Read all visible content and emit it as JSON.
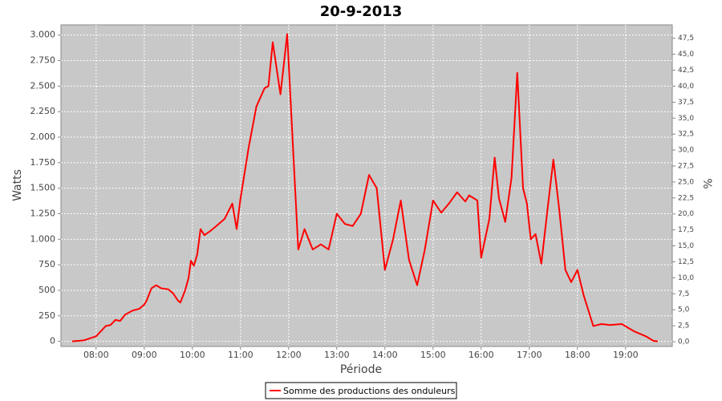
{
  "chart_data": {
    "type": "line",
    "title": "20-9-2013",
    "x_label": "Période",
    "y_label": "Watts",
    "y2_label": "%",
    "grid": true,
    "legend": "bottom",
    "x": [
      7.5,
      7.75,
      8.0,
      8.1,
      8.2,
      8.3,
      8.4,
      8.5,
      8.6,
      8.75,
      8.9,
      9.0,
      9.05,
      9.15,
      9.25,
      9.35,
      9.5,
      9.6,
      9.7,
      9.75,
      9.85,
      9.92,
      9.97,
      10.03,
      10.1,
      10.17,
      10.25,
      10.37,
      10.5,
      10.67,
      10.83,
      10.92,
      11.0,
      11.17,
      11.33,
      11.5,
      11.58,
      11.67,
      11.83,
      11.97,
      12.08,
      12.2,
      12.33,
      12.5,
      12.67,
      12.83,
      13.0,
      13.17,
      13.33,
      13.5,
      13.67,
      13.83,
      14.0,
      14.17,
      14.33,
      14.5,
      14.67,
      14.83,
      15.0,
      15.17,
      15.33,
      15.5,
      15.67,
      15.75,
      15.92,
      16.0,
      16.17,
      16.28,
      16.37,
      16.5,
      16.63,
      16.75,
      16.87,
      16.95,
      17.03,
      17.13,
      17.25,
      17.38,
      17.5,
      17.62,
      17.75,
      17.87,
      18.0,
      18.13,
      18.33,
      18.5,
      18.67,
      18.92,
      19.17,
      19.42,
      19.58,
      19.67
    ],
    "series": [
      {
        "name": "Somme des productions des onduleurs",
        "color": "#ff0000",
        "values": [
          0,
          10,
          50,
          100,
          150,
          160,
          210,
          200,
          260,
          300,
          320,
          360,
          400,
          520,
          550,
          520,
          510,
          470,
          400,
          380,
          500,
          620,
          790,
          740,
          850,
          1100,
          1040,
          1080,
          1130,
          1200,
          1350,
          1100,
          1400,
          1900,
          2300,
          2480,
          2500,
          2930,
          2420,
          3010,
          2000,
          900,
          1100,
          900,
          950,
          900,
          1250,
          1150,
          1130,
          1250,
          1630,
          1500,
          700,
          1000,
          1380,
          800,
          550,
          900,
          1380,
          1260,
          1350,
          1460,
          1370,
          1430,
          1380,
          820,
          1200,
          1800,
          1400,
          1170,
          1600,
          2630,
          1500,
          1350,
          1000,
          1050,
          760,
          1300,
          1780,
          1300,
          700,
          580,
          700,
          450,
          150,
          170,
          160,
          170,
          100,
          50,
          5,
          0
        ]
      }
    ],
    "xlim": [
      7.27,
      19.97
    ],
    "xticks": [
      {
        "value": 8,
        "label": "08:00"
      },
      {
        "value": 9,
        "label": "09:00"
      },
      {
        "value": 10,
        "label": "10:00"
      },
      {
        "value": 11,
        "label": "11:00"
      },
      {
        "value": 12,
        "label": "12:00"
      },
      {
        "value": 13,
        "label": "13:00"
      },
      {
        "value": 14,
        "label": "14:00"
      },
      {
        "value": 15,
        "label": "15:00"
      },
      {
        "value": 16,
        "label": "16:00"
      },
      {
        "value": 17,
        "label": "17:00"
      },
      {
        "value": 18,
        "label": "18:00"
      },
      {
        "value": 19,
        "label": "19:00"
      }
    ],
    "ylim": [
      -50,
      3100
    ],
    "yticks": [
      0,
      250,
      500,
      750,
      {
        "value": 1000,
        "label": "1.000"
      },
      {
        "value": 1250,
        "label": "1.250"
      },
      {
        "value": 1500,
        "label": "1.500"
      },
      {
        "value": 1750,
        "label": "1.750"
      },
      {
        "value": 2000,
        "label": "2.000"
      },
      {
        "value": 2250,
        "label": "2.250"
      },
      {
        "value": 2500,
        "label": "2.500"
      },
      {
        "value": 2750,
        "label": "2.750"
      },
      {
        "value": 3000,
        "label": "3.000"
      }
    ],
    "y2lim": [
      -0.75,
      49.6
    ],
    "y2ticks": [
      {
        "value": 0,
        "label": "0,0"
      },
      {
        "value": 2.5,
        "label": "2,5"
      },
      {
        "value": 5,
        "label": "5,0"
      },
      {
        "value": 7.5,
        "label": "7,5"
      },
      {
        "value": 10,
        "label": "10,0"
      },
      {
        "value": 12.5,
        "label": "12,5"
      },
      {
        "value": 15,
        "label": "15,0"
      },
      {
        "value": 17.5,
        "label": "17,5"
      },
      {
        "value": 20,
        "label": "20,0"
      },
      {
        "value": 22.5,
        "label": "22,5"
      },
      {
        "value": 25,
        "label": "25,0"
      },
      {
        "value": 27.5,
        "label": "27,5"
      },
      {
        "value": 30,
        "label": "30,0"
      },
      {
        "value": 32.5,
        "label": "32,5"
      },
      {
        "value": 35,
        "label": "35,0"
      },
      {
        "value": 37.5,
        "label": "37,5"
      },
      {
        "value": 40,
        "label": "40,0"
      },
      {
        "value": 42.5,
        "label": "42,5"
      },
      {
        "value": 45,
        "label": "45,0"
      },
      {
        "value": 47.5,
        "label": "47,5"
      }
    ]
  }
}
